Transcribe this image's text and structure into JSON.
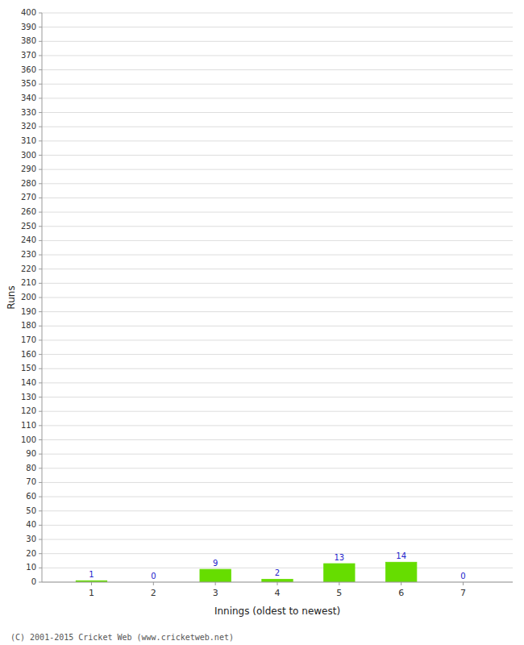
{
  "chart_data": {
    "type": "bar",
    "x_label": "Innings (oldest to newest)",
    "y_label": "Runs",
    "categories": [
      1,
      2,
      3,
      4,
      5,
      6,
      7
    ],
    "values": [
      1,
      0,
      9,
      2,
      13,
      14,
      0
    ],
    "color": "#66dd00",
    "ylim": [
      0,
      400
    ],
    "yticks": [
      0,
      10,
      20,
      30,
      40,
      50,
      60,
      70,
      80,
      90,
      100,
      110,
      120,
      130,
      140,
      150,
      160,
      170,
      180,
      190,
      200,
      210,
      220,
      230,
      240,
      250,
      260,
      270,
      280,
      290,
      300,
      310,
      320,
      330,
      340,
      350,
      360,
      370,
      380,
      390,
      400
    ],
    "grid": true,
    "data_labels": true,
    "annotations": [
      "(C) 2001-2015 Cricket Web (www.cricketweb.net)"
    ]
  }
}
